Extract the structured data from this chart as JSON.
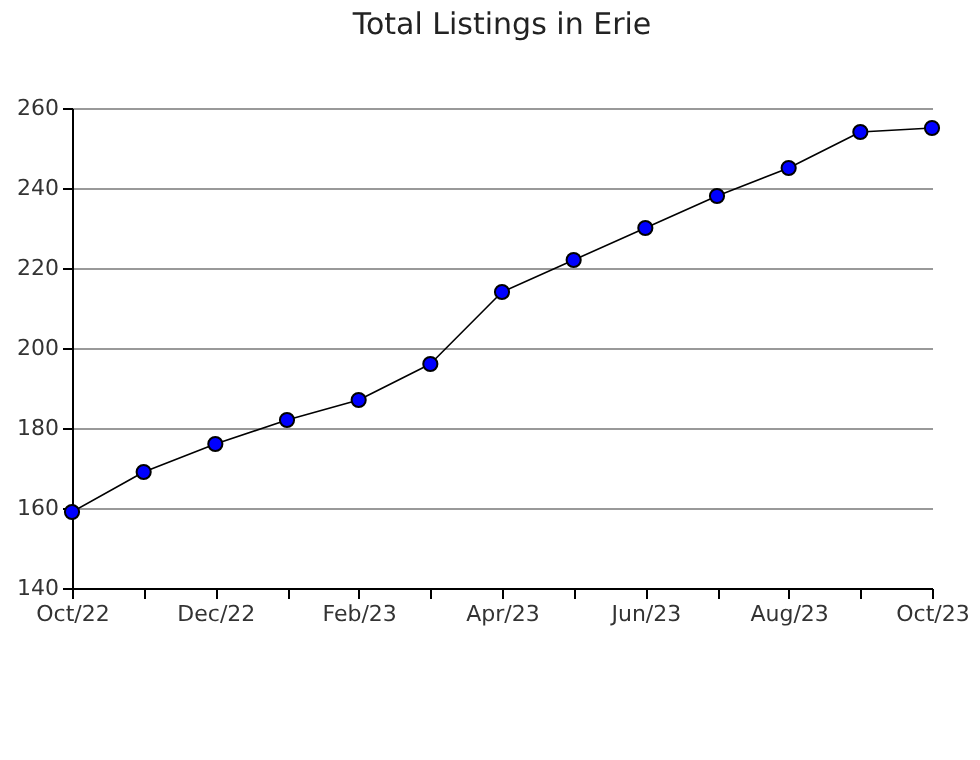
{
  "chart_data": {
    "type": "line",
    "title": "Total Listings in Erie",
    "categories": [
      "Oct/22",
      null,
      "Dec/22",
      null,
      "Feb/23",
      null,
      "Apr/23",
      null,
      "Jun/23",
      null,
      "Aug/23",
      null,
      "Oct/23"
    ],
    "series": [
      {
        "color": "#0000ff",
        "values": [
          159,
          169,
          176,
          182,
          187,
          196,
          214,
          222,
          230,
          238,
          245,
          254,
          255
        ]
      }
    ],
    "ylim": [
      140,
      260
    ],
    "yticks": [
      140,
      160,
      180,
      200,
      220,
      240,
      260
    ],
    "grid": "y",
    "marker": "circle",
    "line_style": "solid",
    "legend": false
  }
}
